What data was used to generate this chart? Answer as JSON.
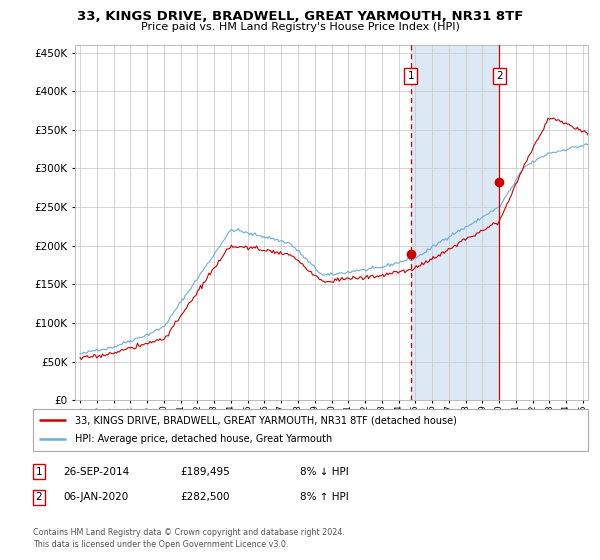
{
  "title": "33, KINGS DRIVE, BRADWELL, GREAT YARMOUTH, NR31 8TF",
  "subtitle": "Price paid vs. HM Land Registry's House Price Index (HPI)",
  "legend_line1": "33, KINGS DRIVE, BRADWELL, GREAT YARMOUTH, NR31 8TF (detached house)",
  "legend_line2": "HPI: Average price, detached house, Great Yarmouth",
  "annotation1": {
    "num": "1",
    "date": "26-SEP-2014",
    "price": "£189,495",
    "hpi": "8% ↓ HPI",
    "year": 2014.73,
    "price_val": 189495
  },
  "annotation2": {
    "num": "2",
    "date": "06-JAN-2020",
    "price": "£282,500",
    "hpi": "8% ↑ HPI",
    "year": 2020.02,
    "price_val": 282500
  },
  "footer1": "Contains HM Land Registry data © Crown copyright and database right 2024.",
  "footer2": "This data is licensed under the Open Government Licence v3.0.",
  "hpi_color": "#6baed6",
  "price_color": "#cc0000",
  "shade_color": "#dce9f5",
  "ylim": [
    0,
    460000
  ],
  "xlim_start": 1994.7,
  "xlim_end": 2025.3
}
